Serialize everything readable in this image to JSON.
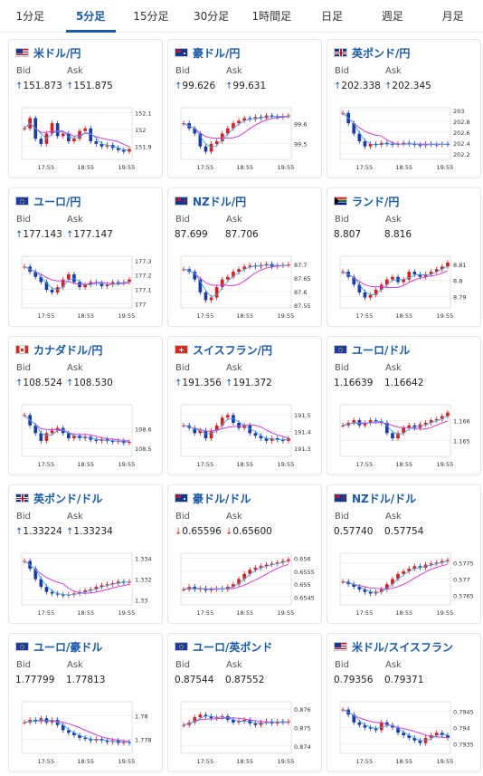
{
  "tabs": [
    "1分足",
    "5分足",
    "15分足",
    "30分足",
    "1時間足",
    "日足",
    "週足",
    "月足"
  ],
  "active_tab": 1,
  "labels": {
    "bid": "Bid",
    "ask": "Ask"
  },
  "x_ticks": [
    "17:55",
    "18:55",
    "19:55"
  ],
  "colors": {
    "up": "#d81e1e",
    "down": "#1a3aa8",
    "ma_long": "#d23fd8",
    "ma_short": "#3fa2e8",
    "grid": "#e8e8e8",
    "link": "#1a5aa8"
  },
  "cards": [
    {
      "name": "米ドル/円",
      "flag": "us",
      "bid": "151.873",
      "ask": "151.875",
      "dir": "up",
      "ticks": [
        "152.1",
        "152",
        "151.9"
      ],
      "ylim": [
        151.82,
        152.13
      ],
      "shape": [
        0.6,
        0.8,
        0.4,
        0.3,
        0.5,
        0.7,
        0.45,
        0.5,
        0.35,
        0.4,
        0.55,
        0.6,
        0.35,
        0.3,
        0.25,
        0.28,
        0.22,
        0.18,
        0.15,
        0.2
      ]
    },
    {
      "name": "豪ドル/円",
      "flag": "au",
      "bid": "99.626",
      "ask": "99.631",
      "dir": "up",
      "ticks": [
        "99.6",
        "99.5"
      ],
      "ylim": [
        99.42,
        99.68
      ],
      "shape": [
        0.7,
        0.6,
        0.5,
        0.25,
        0.15,
        0.3,
        0.35,
        0.5,
        0.6,
        0.7,
        0.75,
        0.8,
        0.78,
        0.82,
        0.8,
        0.85,
        0.83,
        0.82,
        0.84,
        0.85
      ]
    },
    {
      "name": "英ポンド/円",
      "flag": "gb",
      "bid": "202.338",
      "ask": "202.345",
      "dir": "up",
      "ticks": [
        "203",
        "202.8",
        "202.6",
        "202.4",
        "202.2"
      ],
      "ylim": [
        202.1,
        203.05
      ],
      "shape": [
        0.9,
        0.7,
        0.5,
        0.35,
        0.25,
        0.3,
        0.28,
        0.32,
        0.3,
        0.28,
        0.3,
        0.32,
        0.3,
        0.28,
        0.27,
        0.3,
        0.29,
        0.28,
        0.3,
        0.29
      ]
    },
    {
      "name": "ユーロ/円",
      "flag": "eu",
      "bid": "177.143",
      "ask": "177.147",
      "dir": "up",
      "ticks": [
        "177.3",
        "177.2",
        "177.1",
        "177"
      ],
      "ylim": [
        176.97,
        177.33
      ],
      "shape": [
        0.8,
        0.7,
        0.6,
        0.5,
        0.35,
        0.3,
        0.4,
        0.55,
        0.65,
        0.5,
        0.4,
        0.45,
        0.5,
        0.48,
        0.42,
        0.45,
        0.5,
        0.48,
        0.5,
        0.55
      ]
    },
    {
      "name": "NZドル/円",
      "flag": "nz",
      "bid": "87.699",
      "ask": "87.706",
      "dir": "",
      "ticks": [
        "87.7",
        "87.65",
        "87.6",
        "87.55"
      ],
      "ylim": [
        87.54,
        87.73
      ],
      "shape": [
        0.75,
        0.7,
        0.55,
        0.3,
        0.15,
        0.2,
        0.4,
        0.55,
        0.6,
        0.7,
        0.75,
        0.8,
        0.82,
        0.8,
        0.83,
        0.85,
        0.8,
        0.82,
        0.83,
        0.84
      ]
    },
    {
      "name": "ランド/円",
      "flag": "za",
      "bid": "8.807",
      "ask": "8.816",
      "dir": "",
      "ticks": [
        "8.81",
        "8.8",
        "8.79"
      ],
      "ylim": [
        8.783,
        8.815
      ],
      "shape": [
        0.7,
        0.6,
        0.45,
        0.3,
        0.2,
        0.25,
        0.35,
        0.45,
        0.55,
        0.6,
        0.5,
        0.55,
        0.7,
        0.65,
        0.6,
        0.65,
        0.7,
        0.75,
        0.8,
        0.88
      ]
    },
    {
      "name": "カナダドル/円",
      "flag": "ca",
      "bid": "108.524",
      "ask": "108.530",
      "dir": "up",
      "ticks": [
        "108.6",
        "108.5"
      ],
      "ylim": [
        108.46,
        108.72
      ],
      "shape": [
        0.8,
        0.6,
        0.45,
        0.3,
        0.45,
        0.5,
        0.55,
        0.45,
        0.35,
        0.4,
        0.35,
        0.38,
        0.32,
        0.3,
        0.33,
        0.3,
        0.28,
        0.3,
        0.26,
        0.28
      ]
    },
    {
      "name": "スイスフラン/円",
      "flag": "ch",
      "bid": "191.356",
      "ask": "191.372",
      "dir": "up",
      "ticks": [
        "191.5",
        "191.4",
        "191.3"
      ],
      "ylim": [
        191.25,
        191.56
      ],
      "shape": [
        0.6,
        0.55,
        0.45,
        0.5,
        0.35,
        0.5,
        0.6,
        0.75,
        0.8,
        0.65,
        0.55,
        0.6,
        0.45,
        0.4,
        0.35,
        0.3,
        0.35,
        0.32,
        0.3,
        0.35
      ]
    },
    {
      "name": "ユーロ/ドル",
      "flag": "eu",
      "bid": "1.16639",
      "ask": "1.16642",
      "dir": "",
      "ticks": [
        "1.166",
        "1.165"
      ],
      "ylim": [
        1.1642,
        1.1668
      ],
      "shape": [
        0.6,
        0.65,
        0.7,
        0.6,
        0.65,
        0.7,
        0.68,
        0.65,
        0.45,
        0.35,
        0.45,
        0.55,
        0.6,
        0.55,
        0.62,
        0.65,
        0.7,
        0.72,
        0.78,
        0.85
      ]
    },
    {
      "name": "英ポンド/ドル",
      "flag": "gb",
      "bid": "1.33224",
      "ask": "1.33234",
      "dir": "up",
      "ticks": [
        "1.334",
        "1.332",
        "1.33"
      ],
      "ylim": [
        1.3295,
        1.3345
      ],
      "shape": [
        0.85,
        0.7,
        0.5,
        0.35,
        0.25,
        0.22,
        0.2,
        0.18,
        0.2,
        0.22,
        0.25,
        0.28,
        0.3,
        0.35,
        0.38,
        0.4,
        0.42,
        0.45,
        0.43,
        0.45
      ]
    },
    {
      "name": "豪ドル/ドル",
      "flag": "au",
      "bid": "0.65596",
      "ask": "0.65600",
      "dir": "down",
      "ticks": [
        "0.656",
        "0.6555",
        "0.655",
        "0.6545"
      ],
      "ylim": [
        0.6542,
        0.6562
      ],
      "shape": [
        0.3,
        0.35,
        0.3,
        0.32,
        0.28,
        0.3,
        0.32,
        0.3,
        0.35,
        0.4,
        0.5,
        0.6,
        0.68,
        0.72,
        0.75,
        0.78,
        0.8,
        0.82,
        0.85,
        0.88
      ]
    },
    {
      "name": "NZドル/ドル",
      "flag": "nz",
      "bid": "0.57740",
      "ask": "0.57754",
      "dir": "",
      "ticks": [
        "0.5775",
        "0.577",
        "0.5765"
      ],
      "ylim": [
        0.5762,
        0.5778
      ],
      "shape": [
        0.45,
        0.4,
        0.35,
        0.3,
        0.25,
        0.22,
        0.25,
        0.3,
        0.4,
        0.5,
        0.6,
        0.65,
        0.7,
        0.75,
        0.72,
        0.78,
        0.8,
        0.82,
        0.85,
        0.87
      ]
    },
    {
      "name": "ユーロ/豪ドル",
      "flag": "eu",
      "bid": "1.77799",
      "ask": "1.77813",
      "dir": "",
      "ticks": [
        "1.78",
        "1.778"
      ],
      "ylim": [
        1.7768,
        1.7812
      ],
      "shape": [
        0.6,
        0.65,
        0.62,
        0.68,
        0.6,
        0.65,
        0.55,
        0.45,
        0.4,
        0.35,
        0.3,
        0.28,
        0.25,
        0.28,
        0.25,
        0.22,
        0.25,
        0.2,
        0.22,
        0.2
      ]
    },
    {
      "name": "ユーロ/英ポンド",
      "flag": "eu",
      "bid": "0.87544",
      "ask": "0.87552",
      "dir": "",
      "ticks": [
        "0.876",
        "0.875",
        "0.874"
      ],
      "ylim": [
        0.8736,
        0.8764
      ],
      "shape": [
        0.55,
        0.6,
        0.7,
        0.75,
        0.72,
        0.68,
        0.7,
        0.72,
        0.65,
        0.6,
        0.62,
        0.65,
        0.58,
        0.55,
        0.6,
        0.62,
        0.58,
        0.62,
        0.6,
        0.62
      ]
    },
    {
      "name": "米ドル/スイスフラン",
      "flag": "us",
      "bid": "0.79356",
      "ask": "0.79371",
      "dir": "",
      "ticks": [
        "0.7945",
        "0.794",
        "0.7935"
      ],
      "ylim": [
        0.7932,
        0.7948
      ],
      "shape": [
        0.85,
        0.75,
        0.6,
        0.55,
        0.5,
        0.48,
        0.45,
        0.6,
        0.55,
        0.5,
        0.4,
        0.35,
        0.3,
        0.25,
        0.2,
        0.3,
        0.35,
        0.4,
        0.35,
        0.3
      ]
    }
  ]
}
